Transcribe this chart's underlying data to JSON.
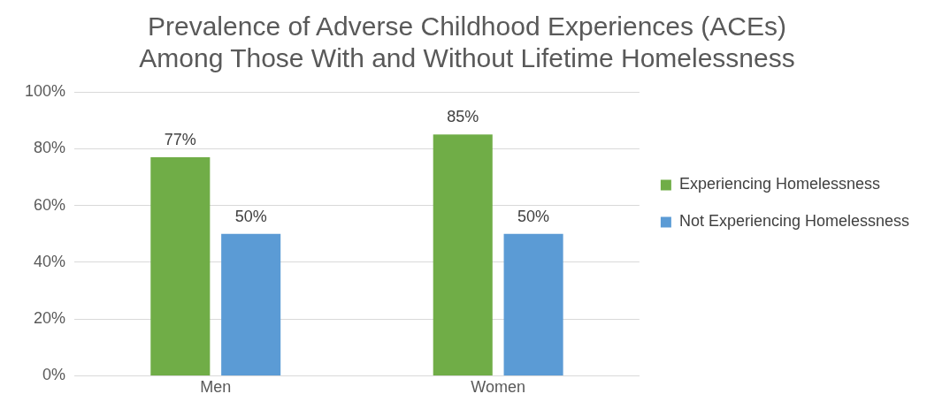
{
  "chart_data": {
    "type": "bar",
    "title": "Prevalence of Adverse Childhood Experiences (ACEs) Among Those With and Without Lifetime Homelessness",
    "categories": [
      "Men",
      "Women"
    ],
    "series": [
      {
        "name": "Experiencing Homelessness",
        "color": "#70ad47",
        "values": [
          77,
          85
        ],
        "value_labels": [
          "77%",
          "85%"
        ]
      },
      {
        "name": "Not Experiencing Homelessness",
        "color": "#5b9bd5",
        "values": [
          50,
          50
        ],
        "value_labels": [
          "50%",
          "50%"
        ]
      }
    ],
    "ylim": [
      0,
      100
    ],
    "yticks": [
      {
        "value": 0,
        "label": "0%"
      },
      {
        "value": 20,
        "label": "20%"
      },
      {
        "value": 40,
        "label": "40%"
      },
      {
        "value": 60,
        "label": "60%"
      },
      {
        "value": 80,
        "label": "80%"
      },
      {
        "value": 100,
        "label": "100%"
      }
    ],
    "grid": "y",
    "legend": "right"
  }
}
